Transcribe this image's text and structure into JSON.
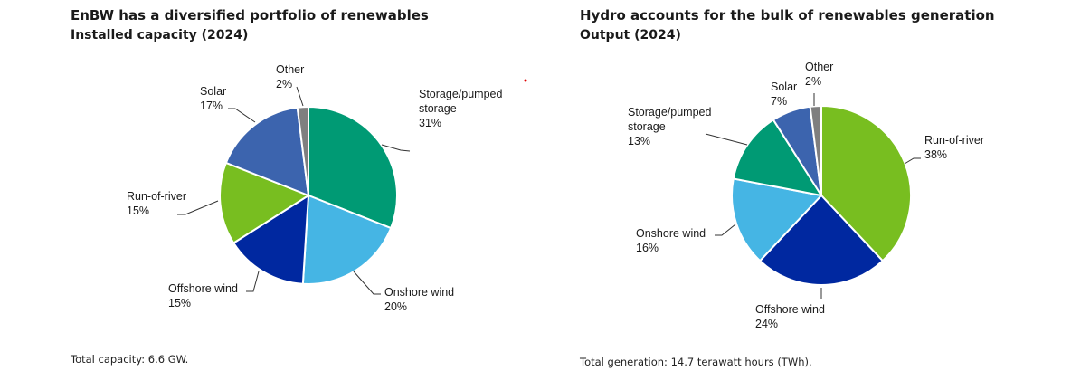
{
  "chart_data": [
    {
      "type": "pie",
      "title": "EnBW has a diversified portfolio of renewables",
      "subtitle": "Installed capacity (2024)",
      "footnote": "Total capacity: 6.6 GW.",
      "slices": [
        {
          "label": "Storage/pumped storage",
          "label_lines": [
            "Storage/pumped",
            "storage"
          ],
          "value": 31,
          "value_label": "31%",
          "color": "#009a74"
        },
        {
          "label": "Onshore wind",
          "label_lines": [
            "Onshore wind"
          ],
          "value": 20,
          "value_label": "20%",
          "color": "#45b5e4"
        },
        {
          "label": "Offshore wind",
          "label_lines": [
            "Offshore wind"
          ],
          "value": 15,
          "value_label": "15%",
          "color": "#0028a0"
        },
        {
          "label": "Run-of-river",
          "label_lines": [
            "Run-of-river"
          ],
          "value": 15,
          "value_label": "15%",
          "color": "#78be20"
        },
        {
          "label": "Solar",
          "label_lines": [
            "Solar"
          ],
          "value": 17,
          "value_label": "17%",
          "color": "#3c64ae"
        },
        {
          "label": "Other",
          "label_lines": [
            "Other"
          ],
          "value": 2,
          "value_label": "2%",
          "color": "#7f7f7f"
        }
      ]
    },
    {
      "type": "pie",
      "title": "Hydro accounts for the bulk of renewables generation",
      "subtitle": "Output (2024)",
      "footnote": "Total generation: 14.7 terawatt hours (TWh).",
      "slices": [
        {
          "label": "Run-of-river",
          "label_lines": [
            "Run-of-river"
          ],
          "value": 38,
          "value_label": "38%",
          "color": "#78be20"
        },
        {
          "label": "Offshore wind",
          "label_lines": [
            "Offshore wind"
          ],
          "value": 24,
          "value_label": "24%",
          "color": "#0028a0"
        },
        {
          "label": "Onshore wind",
          "label_lines": [
            "Onshore wind"
          ],
          "value": 16,
          "value_label": "16%",
          "color": "#45b5e4"
        },
        {
          "label": "Storage/pumped storage",
          "label_lines": [
            "Storage/pumped",
            "storage"
          ],
          "value": 13,
          "value_label": "13%",
          "color": "#009a74"
        },
        {
          "label": "Solar",
          "label_lines": [
            "Solar"
          ],
          "value": 7,
          "value_label": "7%",
          "color": "#3c64ae"
        },
        {
          "label": "Other",
          "label_lines": [
            "Other"
          ],
          "value": 2,
          "value_label": "2%",
          "color": "#7f7f7f"
        }
      ]
    }
  ]
}
